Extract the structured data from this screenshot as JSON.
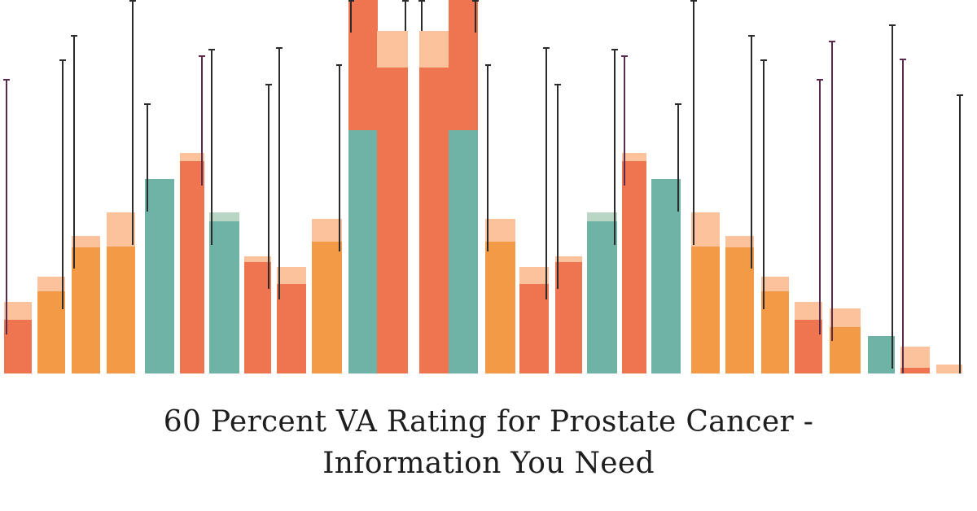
{
  "title": {
    "line1": "60 Percent VA Rating for Prostate Cancer -",
    "line2": "Information You Need"
  },
  "illustration": {
    "description_icon": "decorative-bar-chart-illustration",
    "palette": {
      "orange": "#f29a45",
      "coral": "#ef7550",
      "teal": "#6fb3a6",
      "peach": "#fcc29c",
      "mint": "#b9d6c5",
      "line_dark": "#2b2b2b",
      "line_purple": "#5b2b4e"
    }
  }
}
